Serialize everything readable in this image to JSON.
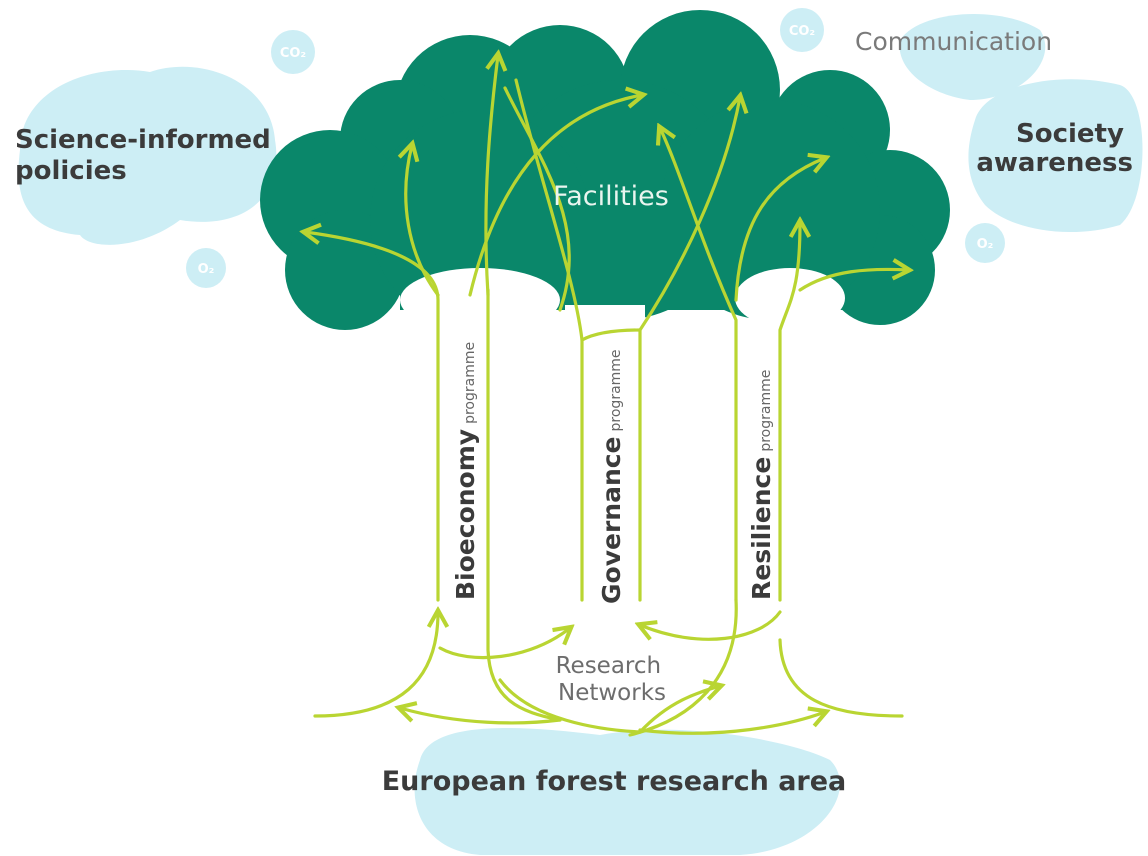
{
  "labels": {
    "policies": [
      "Science-informed",
      "policies"
    ],
    "communication": "Communication",
    "society": [
      "Society",
      "awareness"
    ],
    "facilities": "Facilities",
    "networks": [
      "Research",
      "Networks"
    ],
    "area": "European forest research area"
  },
  "programmes": [
    {
      "name": "Bioeconomy",
      "suffix": "programme"
    },
    {
      "name": "Governance",
      "suffix": "programme"
    },
    {
      "name": "Resilience",
      "suffix": "programme"
    }
  ],
  "molecules": [
    "CO₂",
    "CO₂",
    "O₂",
    "O₂"
  ]
}
